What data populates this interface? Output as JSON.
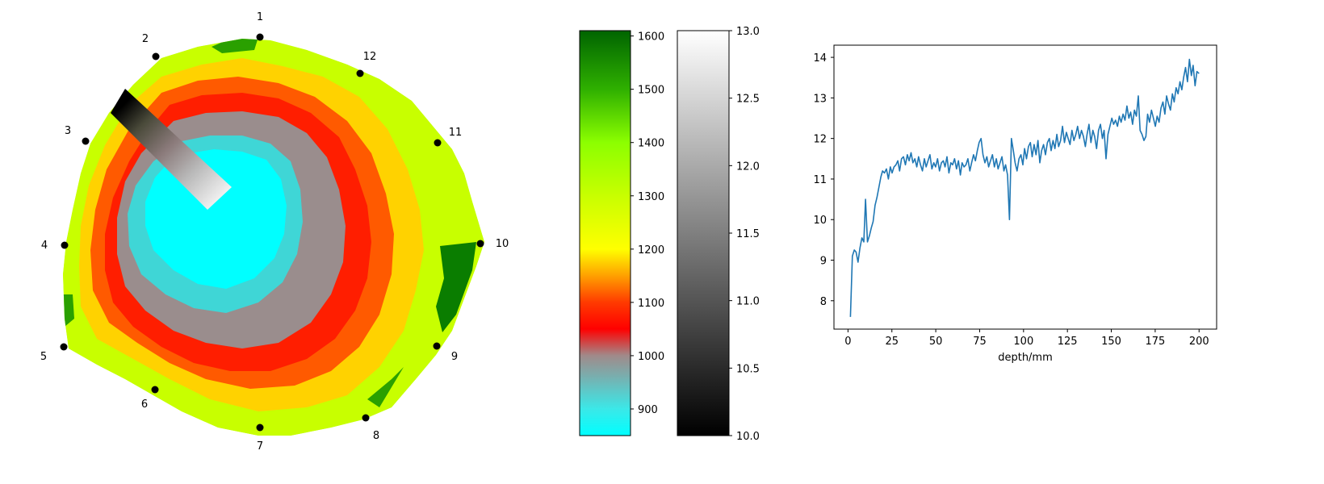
{
  "chart_data": [
    {
      "type": "heatmap",
      "subtype": "polar-sensor-map",
      "sensor_labels": [
        "1",
        "2",
        "3",
        "4",
        "5",
        "6",
        "7",
        "8",
        "9",
        "10",
        "11",
        "12"
      ],
      "colorbar": {
        "ticks": [
          900,
          1000,
          1100,
          1200,
          1300,
          1400,
          1500,
          1600
        ],
        "range": [
          850,
          1610
        ],
        "colormap": [
          {
            "v": 850,
            "color": "#00ffff"
          },
          {
            "v": 900,
            "color": "#3be8e8"
          },
          {
            "v": 1000,
            "color": "#a08a8a"
          },
          {
            "v": 1050,
            "color": "#ff0000"
          },
          {
            "v": 1100,
            "color": "#ff3a00"
          },
          {
            "v": 1150,
            "color": "#ffa000"
          },
          {
            "v": 1200,
            "color": "#ffff00"
          },
          {
            "v": 1300,
            "color": "#c8ff00"
          },
          {
            "v": 1400,
            "color": "#8cff00"
          },
          {
            "v": 1500,
            "color": "#2fb000"
          },
          {
            "v": 1610,
            "color": "#006400"
          }
        ]
      },
      "grey_colorbar": {
        "ticks": [
          "10.0",
          "10.5",
          "11.0",
          "11.5",
          "12.0",
          "12.5",
          "13.0"
        ],
        "range": [
          10.0,
          13.0
        ],
        "colors": [
          "#000000",
          "#ffffff"
        ]
      }
    },
    {
      "type": "line",
      "xlabel": "depth/mm",
      "ylabel": "",
      "xlim": [
        -8,
        210
      ],
      "ylim": [
        7.3,
        14.3
      ],
      "x_ticks": [
        0,
        25,
        50,
        75,
        100,
        125,
        150,
        175,
        200
      ],
      "y_ticks": [
        8,
        9,
        10,
        11,
        12,
        13,
        14
      ],
      "line_color": "#1f77b4",
      "series": [
        {
          "x": [
            1.4,
            2.5,
            3.6,
            4.6,
            5.7,
            6.8,
            7.9,
            9.0,
            10.0,
            11.1,
            12.2,
            13.3,
            14.3,
            15.4,
            16.5,
            17.6,
            18.7,
            19.7,
            20.8,
            21.9,
            23.0,
            24.1,
            25.1,
            26.2,
            27.3,
            28.4,
            29.4,
            30.5,
            31.6,
            32.7,
            33.8,
            34.8,
            35.9,
            37.0,
            38.1,
            39.2,
            40.2,
            41.3,
            42.4,
            43.5,
            44.5,
            45.6,
            46.7,
            47.8,
            48.9,
            49.9,
            51.0,
            52.1,
            53.2,
            54.3,
            55.3,
            56.4,
            57.5,
            58.6,
            59.6,
            60.7,
            61.8,
            62.9,
            64.0,
            65.0,
            66.1,
            67.2,
            68.3,
            69.4,
            70.4,
            71.5,
            72.6,
            73.7,
            74.7,
            75.8,
            76.9,
            78.0,
            79.1,
            80.1,
            81.2,
            82.3,
            83.4,
            84.5,
            85.5,
            86.6,
            87.7,
            88.8,
            89.8,
            90.9,
            92.0,
            93.1,
            94.2,
            95.2,
            96.3,
            97.4,
            98.5,
            99.6,
            100.6,
            101.7,
            102.8,
            103.9,
            104.9,
            106.0,
            107.1,
            108.2,
            109.3,
            110.3,
            111.4,
            112.5,
            113.6,
            114.7,
            115.7,
            116.8,
            117.9,
            119.0,
            120.0,
            121.1,
            122.2,
            123.3,
            124.4,
            125.4,
            126.5,
            127.6,
            128.7,
            129.8,
            130.8,
            131.9,
            133.0,
            134.1,
            135.2,
            136.2,
            137.3,
            138.4,
            139.5,
            140.5,
            141.6,
            142.7,
            143.8,
            144.9,
            145.9,
            147.0,
            148.1,
            149.2,
            150.3,
            151.3,
            152.4,
            153.5,
            154.6,
            155.6,
            156.7,
            157.8,
            158.9,
            160.0,
            161.0,
            162.1,
            163.2,
            164.3,
            165.4,
            166.4,
            167.5,
            168.6,
            169.7,
            170.7,
            171.8,
            172.9,
            174.0,
            175.1,
            176.1,
            177.2,
            178.3,
            179.4,
            180.5,
            181.5,
            182.6,
            183.7,
            184.8,
            185.8,
            186.9,
            188.0,
            189.1,
            190.2,
            191.2,
            192.3,
            193.4,
            194.5,
            195.6,
            196.6,
            197.7,
            198.8,
            200.0
          ],
          "values": [
            7.6,
            9.1,
            9.25,
            9.2,
            8.95,
            9.3,
            9.55,
            9.45,
            10.5,
            9.45,
            9.6,
            9.8,
            9.95,
            10.35,
            10.55,
            10.8,
            11.05,
            11.2,
            11.15,
            11.25,
            11.0,
            11.3,
            11.15,
            11.3,
            11.35,
            11.45,
            11.2,
            11.5,
            11.55,
            11.35,
            11.6,
            11.45,
            11.65,
            11.4,
            11.5,
            11.3,
            11.55,
            11.35,
            11.2,
            11.5,
            11.3,
            11.45,
            11.6,
            11.25,
            11.4,
            11.3,
            11.5,
            11.2,
            11.4,
            11.45,
            11.3,
            11.55,
            11.15,
            11.4,
            11.35,
            11.5,
            11.25,
            11.45,
            11.1,
            11.4,
            11.3,
            11.35,
            11.5,
            11.2,
            11.4,
            11.6,
            11.45,
            11.7,
            11.9,
            12.0,
            11.6,
            11.4,
            11.55,
            11.3,
            11.45,
            11.6,
            11.3,
            11.5,
            11.25,
            11.4,
            11.55,
            11.2,
            11.35,
            11.1,
            10.0,
            12.0,
            11.7,
            11.4,
            11.2,
            11.5,
            11.6,
            11.35,
            11.75,
            11.5,
            11.8,
            11.9,
            11.55,
            11.85,
            11.6,
            11.95,
            11.4,
            11.7,
            11.85,
            11.6,
            11.9,
            12.0,
            11.7,
            11.95,
            11.75,
            12.1,
            11.8,
            11.95,
            12.3,
            11.9,
            12.15,
            12.0,
            11.85,
            12.2,
            11.95,
            12.1,
            12.3,
            12.0,
            12.2,
            12.05,
            11.8,
            12.1,
            12.35,
            11.9,
            12.2,
            12.05,
            11.75,
            12.2,
            12.35,
            12.0,
            12.2,
            11.5,
            12.1,
            12.3,
            12.5,
            12.35,
            12.45,
            12.3,
            12.55,
            12.4,
            12.6,
            12.45,
            12.8,
            12.5,
            12.65,
            12.35,
            12.7,
            12.55,
            13.05,
            12.2,
            12.1,
            11.95,
            12.05,
            12.6,
            12.4,
            12.7,
            12.5,
            12.3,
            12.55,
            12.4,
            12.75,
            12.9,
            12.6,
            13.05,
            12.85,
            12.7,
            13.1,
            12.9,
            13.25,
            13.1,
            13.4,
            13.2,
            13.5,
            13.75,
            13.4,
            13.95,
            13.55,
            13.8,
            13.3,
            13.65,
            13.6
          ]
        }
      ]
    }
  ]
}
